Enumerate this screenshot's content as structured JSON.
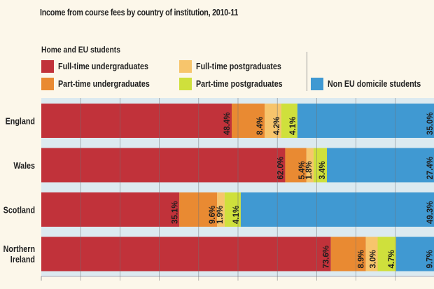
{
  "chart_data": {
    "type": "bar",
    "orientation": "horizontal",
    "stacked": true,
    "title": "Income from course fees by country of institution, 2010-11",
    "legend_group_title": "Home and EU students",
    "categories": [
      "England",
      "Wales",
      "Scotland",
      "Northern Ireland"
    ],
    "series": [
      {
        "name": "Full-time undergraduates",
        "color": "#c1323a",
        "values": [
          48.4,
          62.0,
          35.1,
          73.6
        ],
        "labels": [
          "48.4%",
          "62.0%",
          "35.1%",
          "73.6%"
        ]
      },
      {
        "name": "Part-time undergraduates",
        "color": "#e98a32",
        "values": [
          8.4,
          5.4,
          9.6,
          8.9
        ],
        "labels": [
          "8.4%",
          "5.4%",
          "9.6%",
          "8.9%"
        ]
      },
      {
        "name": "Full-time postgraduates",
        "color": "#f7c56c",
        "values": [
          4.2,
          1.8,
          1.9,
          3.0
        ],
        "labels": [
          "4.2%",
          "1.8%",
          "1.9%",
          "3.0%"
        ]
      },
      {
        "name": "Part-time postgraduates",
        "color": "#cfe03c",
        "values": [
          4.1,
          3.4,
          4.1,
          4.7
        ],
        "labels": [
          "4.1%",
          "3.4%",
          "4.1%",
          "4.7%"
        ]
      },
      {
        "name": "Non EU domicile students",
        "color": "#4099d2",
        "values": [
          35.0,
          27.4,
          49.3,
          9.7
        ],
        "labels": [
          "35.0%",
          "27.4%",
          "49.3%",
          "9.7%"
        ]
      }
    ],
    "xlim": [
      0,
      100
    ],
    "grid": true,
    "legend_placement": "top"
  }
}
